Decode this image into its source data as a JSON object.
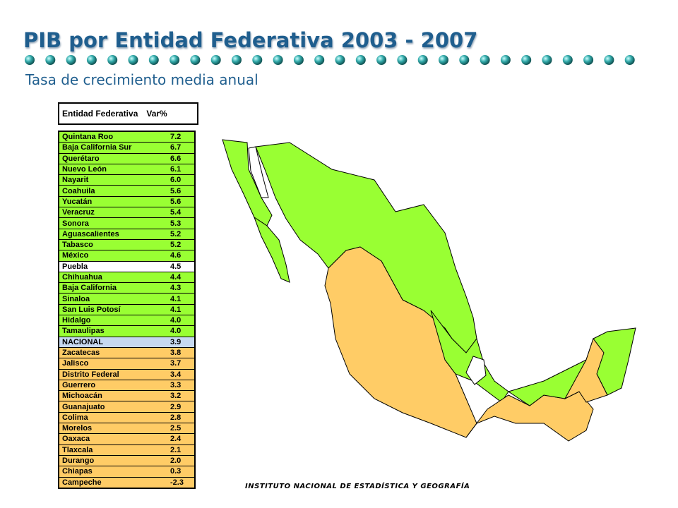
{
  "title": "PIB por Entidad Federativa 2003 - 2007",
  "subtitle": "Tasa de crecimiento media anual",
  "table": {
    "header": [
      "Entidad Federativa",
      "Var%"
    ],
    "rows": [
      {
        "entity": "Quintana Roo",
        "value": "7.2",
        "color": "#99ff33"
      },
      {
        "entity": "Baja California Sur",
        "value": "6.7",
        "color": "#99ff33"
      },
      {
        "entity": "Querétaro",
        "value": "6.6",
        "color": "#99ff33"
      },
      {
        "entity": "Nuevo León",
        "value": "6.1",
        "color": "#99ff33"
      },
      {
        "entity": "Nayarit",
        "value": "6.0",
        "color": "#99ff33"
      },
      {
        "entity": "Coahuila",
        "value": "5.6",
        "color": "#99ff33"
      },
      {
        "entity": "Yucatán",
        "value": "5.6",
        "color": "#99ff33"
      },
      {
        "entity": "Veracruz",
        "value": "5.4",
        "color": "#99ff33"
      },
      {
        "entity": "Sonora",
        "value": "5.3",
        "color": "#99ff33"
      },
      {
        "entity": "Aguascalientes",
        "value": "5.2",
        "color": "#99ff33"
      },
      {
        "entity": "Tabasco",
        "value": "5.2",
        "color": "#99ff33"
      },
      {
        "entity": "México",
        "value": "4.6",
        "color": "#99ff33"
      },
      {
        "entity": "Puebla",
        "value": "4.5",
        "color": "#ffffff"
      },
      {
        "entity": "Chihuahua",
        "value": "4.4",
        "color": "#99ff33"
      },
      {
        "entity": "Baja California",
        "value": "4.3",
        "color": "#99ff33"
      },
      {
        "entity": "Sinaloa",
        "value": "4.1",
        "color": "#99ff33"
      },
      {
        "entity": "San Luis Potosí",
        "value": "4.1",
        "color": "#99ff33"
      },
      {
        "entity": "Hidalgo",
        "value": "4.0",
        "color": "#99ff33"
      },
      {
        "entity": "Tamaulipas",
        "value": "4.0",
        "color": "#99ff33"
      },
      {
        "entity": "NACIONAL",
        "value": "3.9",
        "color": "#c6d9f0"
      },
      {
        "entity": "Zacatecas",
        "value": "3.8",
        "color": "#ffcc66"
      },
      {
        "entity": "Jalisco",
        "value": "3.7",
        "color": "#ffcc66"
      },
      {
        "entity": "Distrito Federal",
        "value": "3.4",
        "color": "#ffcc66"
      },
      {
        "entity": "Guerrero",
        "value": "3.3",
        "color": "#ffcc66"
      },
      {
        "entity": "Michoacán",
        "value": "3.2",
        "color": "#ffcc66"
      },
      {
        "entity": "Guanajuato",
        "value": "2.9",
        "color": "#ffcc66"
      },
      {
        "entity": "Colima",
        "value": "2.8",
        "color": "#ffcc66"
      },
      {
        "entity": "Morelos",
        "value": "2.5",
        "color": "#ffcc66"
      },
      {
        "entity": "Oaxaca",
        "value": "2.4",
        "color": "#ffcc66"
      },
      {
        "entity": "Tlaxcala",
        "value": "2.1",
        "color": "#ffcc66"
      },
      {
        "entity": "Durango",
        "value": "2.0",
        "color": "#ffcc66"
      },
      {
        "entity": "Chiapas",
        "value": "0.3",
        "color": "#ffcc66"
      },
      {
        "entity": "Campeche",
        "value": "-2.3",
        "color": "#ffcc66"
      }
    ]
  },
  "footer": "INSTITUTO NACIONAL DE ESTADÍSTICA Y GEOGRAFÍA"
}
